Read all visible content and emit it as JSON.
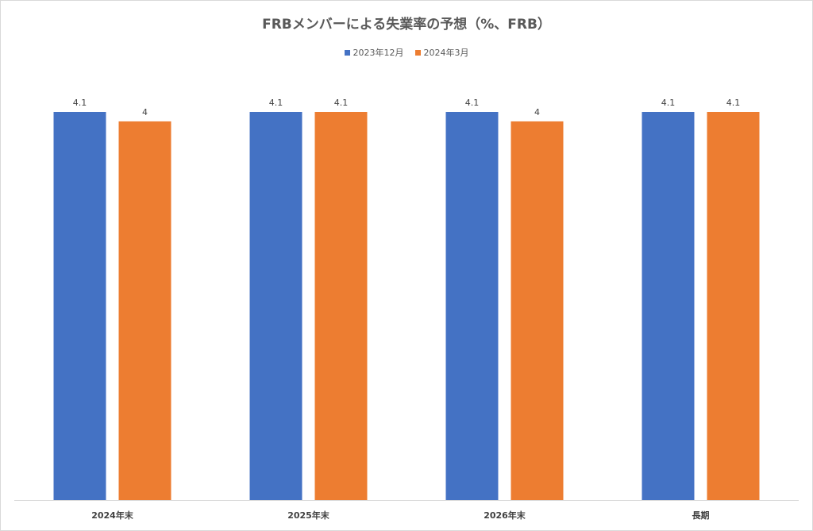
{
  "chart_data": {
    "type": "bar",
    "title": "FRBメンバーによる失業率の予想（%、FRB）",
    "categories": [
      "2024年末",
      "2025年末",
      "2026年末",
      "長期"
    ],
    "series": [
      {
        "name": "2023年12月",
        "values": [
          4.1,
          4.1,
          4.1,
          4.1
        ],
        "color": "#4472c4"
      },
      {
        "name": "2024年3月",
        "values": [
          4,
          4.1,
          4,
          4.1
        ],
        "color": "#ed7d31"
      }
    ],
    "ylim": [
      0,
      4.2
    ],
    "grid": false,
    "legend_position": "top"
  }
}
